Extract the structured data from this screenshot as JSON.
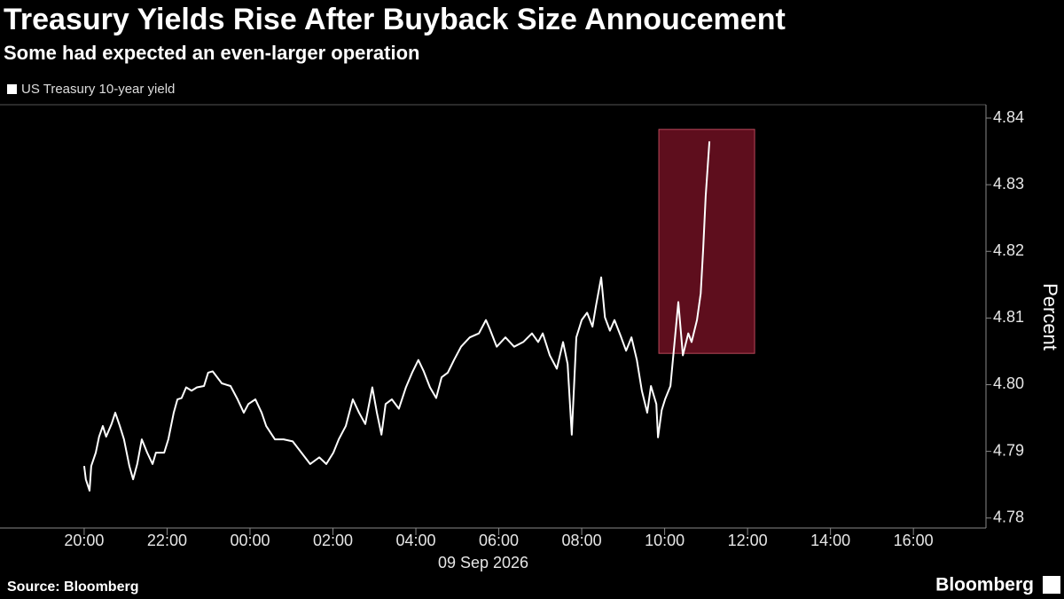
{
  "chart_data": {
    "type": "line",
    "title": "Treasury Yields Rise After Buyback Size Annoucement",
    "subtitle": "Some had expected an even-larger operation",
    "xlabel": "09 Sep 2026",
    "ylabel": "Percent",
    "x": [
      0.0,
      0.04,
      0.13,
      0.17,
      0.28,
      0.36,
      0.45,
      0.53,
      0.66,
      0.75,
      0.86,
      0.96,
      1.09,
      1.18,
      1.28,
      1.39,
      1.52,
      1.65,
      1.73,
      1.93,
      2.03,
      2.16,
      2.25,
      2.35,
      2.46,
      2.59,
      2.72,
      2.89,
      2.99,
      3.1,
      3.32,
      3.53,
      3.7,
      3.85,
      3.96,
      4.13,
      4.28,
      4.39,
      4.6,
      4.81,
      5.03,
      5.24,
      5.45,
      5.67,
      5.84,
      6.01,
      6.14,
      6.31,
      6.48,
      6.63,
      6.78,
      6.95,
      7.06,
      7.17,
      7.27,
      7.42,
      7.59,
      7.76,
      7.91,
      8.06,
      8.19,
      8.34,
      8.49,
      8.62,
      8.77,
      8.92,
      9.09,
      9.3,
      9.52,
      9.69,
      9.78,
      9.95,
      10.16,
      10.37,
      10.59,
      10.8,
      10.95,
      11.06,
      11.23,
      11.4,
      11.55,
      11.66,
      11.76,
      11.87,
      12.0,
      12.13,
      12.26,
      12.34,
      12.47,
      12.56,
      12.68,
      12.79,
      12.94,
      13.07,
      13.2,
      13.33,
      13.45,
      13.58,
      13.67,
      13.8,
      13.84,
      13.93,
      14.01,
      14.14,
      14.22,
      14.33,
      14.44,
      14.57,
      14.65,
      14.78,
      14.87,
      14.93,
      14.99,
      15.08
    ],
    "series": [
      {
        "name": "US Treasury 10-year yield",
        "color": "#ffffff",
        "values": [
          4.7878,
          4.7858,
          4.7841,
          4.7878,
          4.7898,
          4.7922,
          4.7938,
          4.7922,
          4.7941,
          4.7958,
          4.7938,
          4.7918,
          4.7878,
          4.7858,
          4.7881,
          4.7918,
          4.7898,
          4.7881,
          4.7898,
          4.7898,
          4.7918,
          4.7958,
          4.7978,
          4.798,
          4.7996,
          4.7991,
          4.7996,
          4.7998,
          4.8018,
          4.802,
          4.8002,
          4.7998,
          4.7978,
          4.7958,
          4.7971,
          4.7978,
          4.7958,
          4.7938,
          4.7918,
          4.7918,
          4.7915,
          4.7898,
          4.7881,
          4.7891,
          4.7881,
          4.7898,
          4.7918,
          4.7938,
          4.7978,
          4.7958,
          4.7941,
          4.7996,
          4.7958,
          4.7925,
          4.7971,
          4.7978,
          4.7964,
          4.7996,
          4.8018,
          4.8037,
          4.802,
          4.7996,
          4.798,
          4.8011,
          4.8018,
          4.8037,
          4.8057,
          4.8071,
          4.8077,
          4.8097,
          4.8084,
          4.8057,
          4.8071,
          4.8057,
          4.8064,
          4.8077,
          4.8064,
          4.8077,
          4.8044,
          4.8024,
          4.8064,
          4.8031,
          4.7925,
          4.8071,
          4.8097,
          4.8108,
          4.8087,
          4.8117,
          4.8161,
          4.8101,
          4.8081,
          4.8097,
          4.8073,
          4.8051,
          4.8071,
          4.8037,
          4.7991,
          4.7958,
          4.7998,
          4.7971,
          4.7921,
          4.7962,
          4.7978,
          4.7998,
          4.8051,
          4.8124,
          4.8044,
          4.8077,
          4.8064,
          4.8097,
          4.8137,
          4.8204,
          4.8283,
          4.8365
        ]
      }
    ],
    "highlight": {
      "x": [
        13.86,
        16.17
      ],
      "y": [
        4.8047,
        4.8383
      ],
      "color": "#6e1122"
    },
    "xlim": [
      -2.03,
      21.75
    ],
    "ylim": [
      4.7785,
      4.842
    ],
    "xticks": [
      {
        "value": 0,
        "label": "20:00"
      },
      {
        "value": 2,
        "label": "22:00"
      },
      {
        "value": 4,
        "label": "00:00"
      },
      {
        "value": 6,
        "label": "02:00"
      },
      {
        "value": 8,
        "label": "04:00"
      },
      {
        "value": 10,
        "label": "06:00"
      },
      {
        "value": 12,
        "label": "08:00"
      },
      {
        "value": 14,
        "label": "10:00"
      },
      {
        "value": 16,
        "label": "12:00"
      },
      {
        "value": 18,
        "label": "14:00"
      },
      {
        "value": 20,
        "label": "16:00"
      }
    ],
    "yticks": [
      4.78,
      4.79,
      {
        "value": 4.8,
        "label": "4.80"
      },
      4.81,
      4.82,
      4.83,
      4.84
    ]
  },
  "footer": {
    "source": "Source: Bloomberg",
    "brand": "Bloomberg"
  }
}
